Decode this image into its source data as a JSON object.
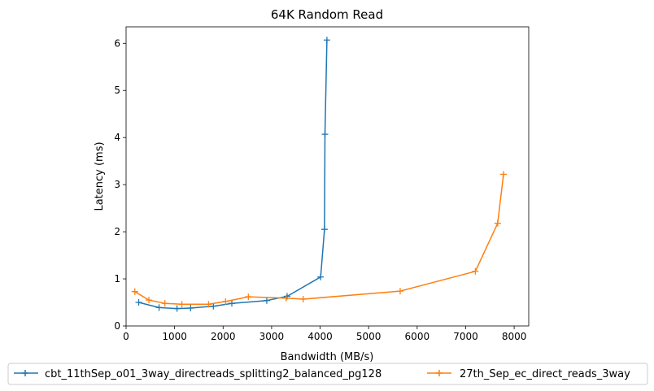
{
  "chart_data": {
    "type": "line",
    "title": "64K  Random Read",
    "xlabel": "Bandwidth (MB/s)",
    "ylabel": "Latency (ms)",
    "xlim": [
      0,
      8300
    ],
    "ylim": [
      0,
      6.35
    ],
    "x_ticks": [
      0,
      1000,
      2000,
      3000,
      4000,
      5000,
      6000,
      7000,
      8000
    ],
    "y_ticks": [
      0,
      1,
      2,
      3,
      4,
      5,
      6
    ],
    "grid": false,
    "legend_position": "bottom-center",
    "marker": "plus",
    "series": [
      {
        "name": "cbt_11thSep_o01_3way_directreads_splitting2_balanced_pg128",
        "color": "#1f77b4",
        "points": [
          [
            260,
            0.5
          ],
          [
            680,
            0.39
          ],
          [
            1050,
            0.37
          ],
          [
            1330,
            0.38
          ],
          [
            1800,
            0.42
          ],
          [
            2180,
            0.48
          ],
          [
            2900,
            0.54
          ],
          [
            3320,
            0.63
          ],
          [
            4010,
            1.04
          ],
          [
            4090,
            2.05
          ],
          [
            4100,
            4.07
          ],
          [
            4140,
            6.07
          ]
        ]
      },
      {
        "name": "27th_Sep_ec_direct_reads_3way",
        "color": "#ff7f0e",
        "points": [
          [
            180,
            0.73
          ],
          [
            470,
            0.55
          ],
          [
            800,
            0.48
          ],
          [
            1150,
            0.46
          ],
          [
            1700,
            0.46
          ],
          [
            2050,
            0.52
          ],
          [
            2520,
            0.62
          ],
          [
            3300,
            0.59
          ],
          [
            3650,
            0.57
          ],
          [
            5650,
            0.74
          ],
          [
            7200,
            1.16
          ],
          [
            7660,
            2.18
          ],
          [
            7780,
            3.22
          ]
        ]
      }
    ]
  }
}
